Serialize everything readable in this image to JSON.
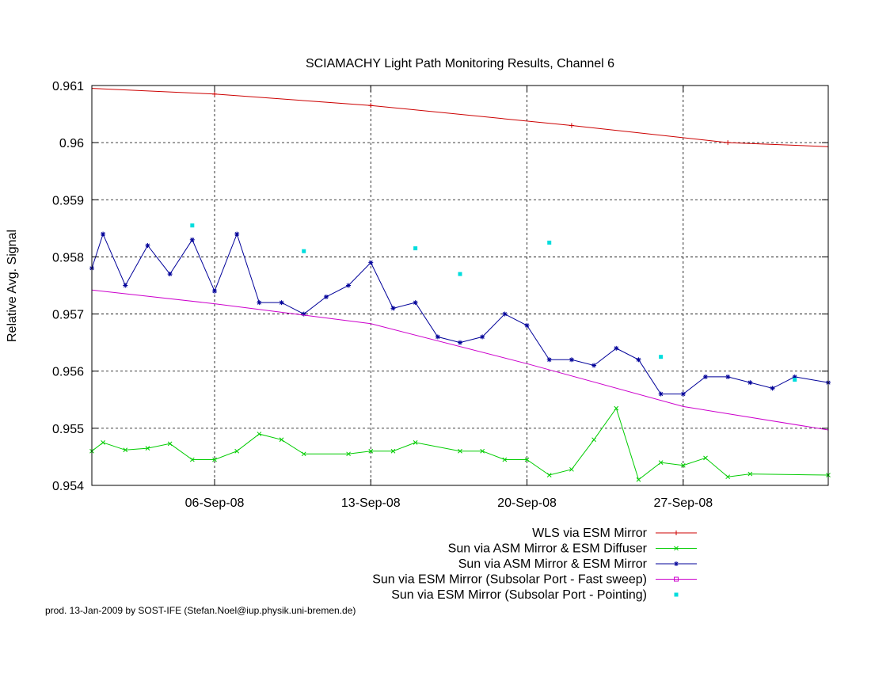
{
  "chart_data": {
    "type": "line",
    "title": "SCIAMACHY Light Path Monitoring Results, Channel 6",
    "xlabel": "",
    "ylabel": "Relative Avg. Signal",
    "xlim": [
      "2008-08-31T12:00",
      "2008-10-03T12:00"
    ],
    "ylim": [
      0.954,
      0.961
    ],
    "grid": true,
    "legend_placement": "bottom-right, below plot",
    "x_ticks": [
      {
        "date": "2008-09-06",
        "label": "06-Sep-08"
      },
      {
        "date": "2008-09-13",
        "label": "13-Sep-08"
      },
      {
        "date": "2008-09-20",
        "label": "20-Sep-08"
      },
      {
        "date": "2008-09-27",
        "label": "27-Sep-08"
      }
    ],
    "y_ticks": [
      {
        "value": 0.954,
        "label": "0.954"
      },
      {
        "value": 0.955,
        "label": "0.955"
      },
      {
        "value": 0.956,
        "label": "0.956"
      },
      {
        "value": 0.957,
        "label": "0.957"
      },
      {
        "value": 0.958,
        "label": "0.958"
      },
      {
        "value": 0.959,
        "label": "0.959"
      },
      {
        "value": 0.96,
        "label": "0.96"
      },
      {
        "value": 0.961,
        "label": "0.961"
      }
    ],
    "series": [
      {
        "name": "WLS via ESM Mirror",
        "color": "#cc0000",
        "marker": "plus",
        "style": "line",
        "points": [
          [
            "2008-09-06",
            0.96085
          ],
          [
            "2008-09-13",
            0.96065
          ],
          [
            "2008-09-22",
            0.9603
          ],
          [
            "2008-09-29",
            0.96
          ]
        ],
        "curve": [
          [
            "2008-08-31T12:00",
            0.96095
          ],
          [
            "2008-09-06",
            0.96085
          ],
          [
            "2008-09-13",
            0.96065
          ],
          [
            "2008-09-22",
            0.9603
          ],
          [
            "2008-09-29",
            0.96
          ],
          [
            "2008-10-03T12:00",
            0.95993
          ]
        ]
      },
      {
        "name": "Sun via ASM Mirror & ESM Diffuser",
        "color": "#00cc00",
        "marker": "x",
        "style": "linespoints",
        "points": [
          [
            "2008-08-31T12:00",
            0.9546
          ],
          [
            "2008-09-01",
            0.95475
          ],
          [
            "2008-09-02",
            0.95462
          ],
          [
            "2008-09-03",
            0.95465
          ],
          [
            "2008-09-04",
            0.95473
          ],
          [
            "2008-09-05",
            0.95445
          ],
          [
            "2008-09-06",
            0.95445
          ],
          [
            "2008-09-07",
            0.9546
          ],
          [
            "2008-09-08",
            0.9549
          ],
          [
            "2008-09-09",
            0.9548
          ],
          [
            "2008-09-10",
            0.95455
          ],
          [
            "2008-09-12",
            0.95455
          ],
          [
            "2008-09-13",
            0.9546
          ],
          [
            "2008-09-14",
            0.9546
          ],
          [
            "2008-09-15",
            0.95475
          ],
          [
            "2008-09-17",
            0.9546
          ],
          [
            "2008-09-18",
            0.9546
          ],
          [
            "2008-09-19",
            0.95445
          ],
          [
            "2008-09-20",
            0.95445
          ],
          [
            "2008-09-21",
            0.95418
          ],
          [
            "2008-09-22",
            0.95428
          ],
          [
            "2008-09-23",
            0.9548
          ],
          [
            "2008-09-24",
            0.95535
          ],
          [
            "2008-09-25",
            0.9541
          ],
          [
            "2008-09-26",
            0.9544
          ],
          [
            "2008-09-27",
            0.95435
          ],
          [
            "2008-09-28",
            0.95448
          ],
          [
            "2008-09-29",
            0.95415
          ],
          [
            "2008-09-30",
            0.9542
          ],
          [
            "2008-10-03T12:00",
            0.95418
          ]
        ]
      },
      {
        "name": "Sun via ASM Mirror & ESM Mirror",
        "color": "#000099",
        "marker": "star",
        "style": "linespoints",
        "points": [
          [
            "2008-08-31T12:00",
            0.9578
          ],
          [
            "2008-09-01",
            0.9584
          ],
          [
            "2008-09-02",
            0.9575
          ],
          [
            "2008-09-03",
            0.9582
          ],
          [
            "2008-09-04",
            0.9577
          ],
          [
            "2008-09-05",
            0.9583
          ],
          [
            "2008-09-06",
            0.9574
          ],
          [
            "2008-09-07",
            0.9584
          ],
          [
            "2008-09-08",
            0.9572
          ],
          [
            "2008-09-09",
            0.9572
          ],
          [
            "2008-09-10",
            0.957
          ],
          [
            "2008-09-11",
            0.9573
          ],
          [
            "2008-09-12",
            0.9575
          ],
          [
            "2008-09-13",
            0.9579
          ],
          [
            "2008-09-14",
            0.9571
          ],
          [
            "2008-09-15",
            0.9572
          ],
          [
            "2008-09-16",
            0.9566
          ],
          [
            "2008-09-17",
            0.9565
          ],
          [
            "2008-09-18",
            0.9566
          ],
          [
            "2008-09-19",
            0.957
          ],
          [
            "2008-09-20",
            0.9568
          ],
          [
            "2008-09-21",
            0.9562
          ],
          [
            "2008-09-22",
            0.9562
          ],
          [
            "2008-09-23",
            0.9561
          ],
          [
            "2008-09-24",
            0.9564
          ],
          [
            "2008-09-25",
            0.9562
          ],
          [
            "2008-09-26",
            0.9556
          ],
          [
            "2008-09-27",
            0.9556
          ],
          [
            "2008-09-28",
            0.9559
          ],
          [
            "2008-09-29",
            0.9559
          ],
          [
            "2008-09-30",
            0.9558
          ],
          [
            "2008-10-01",
            0.9557
          ],
          [
            "2008-10-02",
            0.9559
          ],
          [
            "2008-10-03T12:00",
            0.9558
          ]
        ]
      },
      {
        "name": "Sun via ESM Mirror (Subsolar Port - Fast sweep)",
        "color": "#cc00cc",
        "marker": "square",
        "style": "line",
        "curve": [
          [
            "2008-08-31T12:00",
            0.95742
          ],
          [
            "2008-09-06",
            0.95718
          ],
          [
            "2008-09-13",
            0.95683
          ],
          [
            "2008-09-20",
            0.95613
          ],
          [
            "2008-09-27",
            0.95538
          ],
          [
            "2008-10-03T12:00",
            0.95497
          ]
        ]
      },
      {
        "name": "Sun via ESM Mirror (Subsolar Port - Pointing)",
        "color": "#00dddd",
        "marker": "dot",
        "style": "points",
        "points": [
          [
            "2008-09-05",
            0.95855
          ],
          [
            "2008-09-10",
            0.9581
          ],
          [
            "2008-09-15",
            0.95815
          ],
          [
            "2008-09-17",
            0.9577
          ],
          [
            "2008-09-21",
            0.95825
          ],
          [
            "2008-09-26",
            0.95625
          ],
          [
            "2008-10-02",
            0.95585
          ]
        ]
      }
    ],
    "footer": "prod. 13-Jan-2009 by SOST-IFE (Stefan.Noel@iup.physik.uni-bremen.de)"
  }
}
